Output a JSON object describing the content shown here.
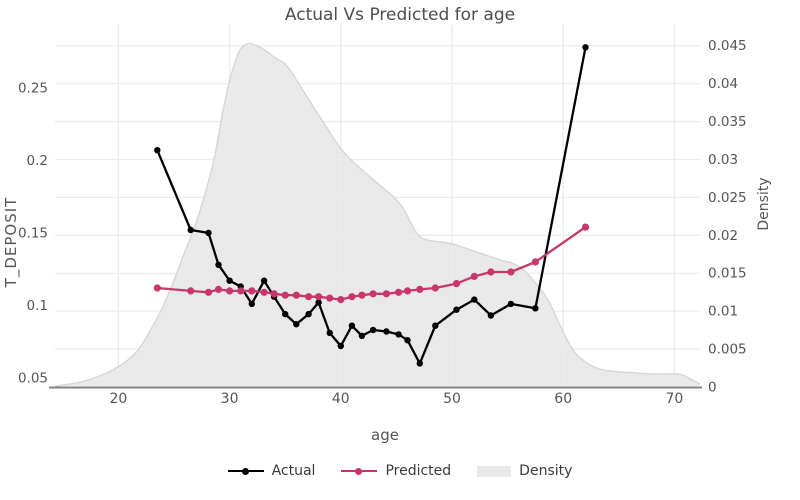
{
  "title": "Actual Vs Predicted for age",
  "axes": {
    "x": {
      "label": "age",
      "ticks": [
        "20",
        "30",
        "40",
        "50",
        "60",
        "70"
      ]
    },
    "left": {
      "label": "T_DEPOSIT",
      "ticks": [
        "0.05",
        "0.1",
        "0.15",
        "0.2",
        "0.25"
      ]
    },
    "right": {
      "label": "Density",
      "ticks": [
        "0",
        "0.005",
        "0.01",
        "0.015",
        "0.02",
        "0.025",
        "0.03",
        "0.035",
        "0.04",
        "0.045"
      ]
    }
  },
  "legend": {
    "items": [
      {
        "label": "Actual",
        "type": "line",
        "color": "#000000"
      },
      {
        "label": "Predicted",
        "type": "line",
        "color": "#c9366b"
      },
      {
        "label": "Density",
        "type": "patch",
        "color": "#e9e9e9"
      }
    ]
  },
  "colors": {
    "actual": "#000000",
    "predicted": "#c9366b",
    "density_fill": "#e9e9e9",
    "density_edge": "#d6d6d6",
    "grid": "#ececec",
    "axis_line": "#808080",
    "tick_text": "#555555",
    "title_text": "#4d4d4d"
  },
  "chart_data": {
    "type": "line",
    "title": "Actual Vs Predicted for age",
    "xlabel": "age",
    "ylabel": "T_DEPOSIT",
    "ylabel_right": "Density",
    "grid": "on",
    "legend_position": "bottom",
    "xlim": [
      14.3,
      72.3
    ],
    "ylim_left": [
      0.0437,
      0.2927
    ],
    "ylim_right": [
      0,
      0.0476
    ],
    "x": [
      23.5,
      26.5,
      28.1,
      29,
      30,
      31,
      32,
      33.1,
      34,
      35,
      36,
      37.1,
      38,
      39,
      40,
      41,
      41.9,
      42.9,
      44.1,
      45.2,
      46,
      47.1,
      48.5,
      50.4,
      52,
      53.5,
      55.3,
      57.5,
      62
    ],
    "series": [
      {
        "name": "Actual",
        "axis": "left",
        "values": [
          0.207,
          0.152,
          0.15,
          0.128,
          0.117,
          0.113,
          0.101,
          0.117,
          0.106,
          0.094,
          0.087,
          0.094,
          0.102,
          0.081,
          0.072,
          0.086,
          0.079,
          0.083,
          0.082,
          0.08,
          0.076,
          0.06,
          0.086,
          0.097,
          0.104,
          0.093,
          0.101,
          0.098,
          0.278
        ]
      },
      {
        "name": "Predicted",
        "axis": "left",
        "values": [
          0.112,
          0.11,
          0.109,
          0.111,
          0.11,
          0.11,
          0.11,
          0.109,
          0.108,
          0.107,
          0.107,
          0.106,
          0.106,
          0.105,
          0.104,
          0.106,
          0.107,
          0.108,
          0.108,
          0.109,
          0.11,
          0.111,
          0.112,
          0.115,
          0.12,
          0.123,
          0.123,
          0.13,
          0.154
        ]
      },
      {
        "name": "Density",
        "axis": "right",
        "type": "area",
        "points": [
          [
            14.3,
            0.0001
          ],
          [
            16,
            0.0004
          ],
          [
            18,
            0.0012
          ],
          [
            20,
            0.0026
          ],
          [
            21,
            0.0037
          ],
          [
            22,
            0.0052
          ],
          [
            23,
            0.0078
          ],
          [
            24,
            0.0105
          ],
          [
            25,
            0.014
          ],
          [
            26,
            0.018
          ],
          [
            27,
            0.0215
          ],
          [
            28,
            0.0265
          ],
          [
            28.7,
            0.0304
          ],
          [
            29.3,
            0.0358
          ],
          [
            30,
            0.0405
          ],
          [
            30.5,
            0.043
          ],
          [
            31,
            0.0448
          ],
          [
            31.7,
            0.0454
          ],
          [
            32.5,
            0.045
          ],
          [
            33.1,
            0.0445
          ],
          [
            34.3,
            0.0432
          ],
          [
            34.9,
            0.0428
          ],
          [
            35.5,
            0.0417
          ],
          [
            36.7,
            0.0389
          ],
          [
            37.7,
            0.0365
          ],
          [
            38.8,
            0.0341
          ],
          [
            40,
            0.0313
          ],
          [
            41.2,
            0.0295
          ],
          [
            43.6,
            0.0265
          ],
          [
            45.4,
            0.0243
          ],
          [
            46.5,
            0.021
          ],
          [
            47.2,
            0.0195
          ],
          [
            48.5,
            0.0192
          ],
          [
            50.1,
            0.0189
          ],
          [
            52,
            0.0179
          ],
          [
            54.4,
            0.0167
          ],
          [
            55.6,
            0.0163
          ],
          [
            56.5,
            0.0154
          ],
          [
            57.5,
            0.0138
          ],
          [
            58.6,
            0.0117
          ],
          [
            59.3,
            0.0095
          ],
          [
            59.8,
            0.0078
          ],
          [
            60.5,
            0.0058
          ],
          [
            61.2,
            0.0041
          ],
          [
            62.8,
            0.0025
          ],
          [
            64,
            0.0021
          ],
          [
            66,
            0.0019
          ],
          [
            68,
            0.0017
          ],
          [
            69.5,
            0.0017
          ],
          [
            70.5,
            0.0018
          ],
          [
            71.5,
            0.001
          ],
          [
            72.3,
            0.0004
          ]
        ]
      }
    ]
  }
}
